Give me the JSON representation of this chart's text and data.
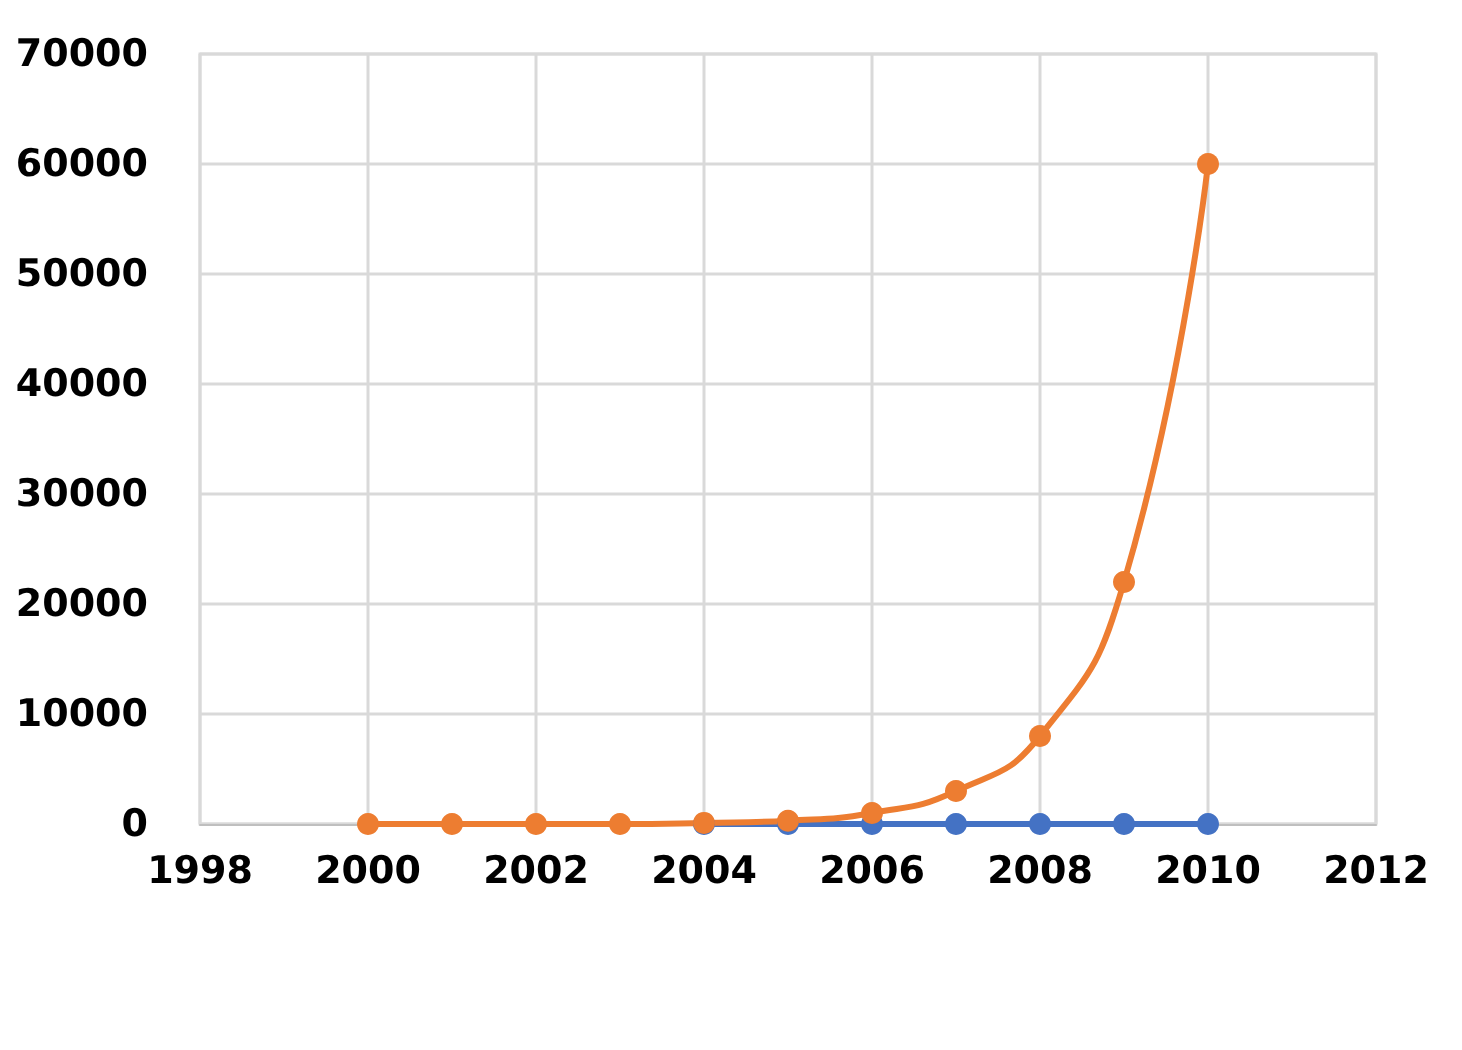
{
  "chart_data": {
    "type": "line",
    "x": [
      2000,
      2001,
      2002,
      2003,
      2004,
      2005,
      2006,
      2007,
      2008,
      2009,
      2010
    ],
    "series": [
      {
        "color": "#4472c4",
        "values": [
          null,
          null,
          null,
          null,
          0,
          0,
          0,
          0,
          0,
          0,
          0
        ]
      },
      {
        "color": "#ed7d31",
        "values": [
          0,
          0,
          0,
          0,
          100,
          300,
          1000,
          3000,
          8000,
          22000,
          60000
        ]
      }
    ],
    "xlim": [
      1998,
      2012
    ],
    "xticks": [
      1998,
      2000,
      2002,
      2004,
      2006,
      2008,
      2010,
      2012
    ],
    "ylim": [
      0,
      70000
    ],
    "yticks": [
      0,
      10000,
      20000,
      30000,
      40000,
      50000,
      60000,
      70000
    ],
    "grid": true,
    "marker": "circle",
    "line_style": "solid"
  }
}
